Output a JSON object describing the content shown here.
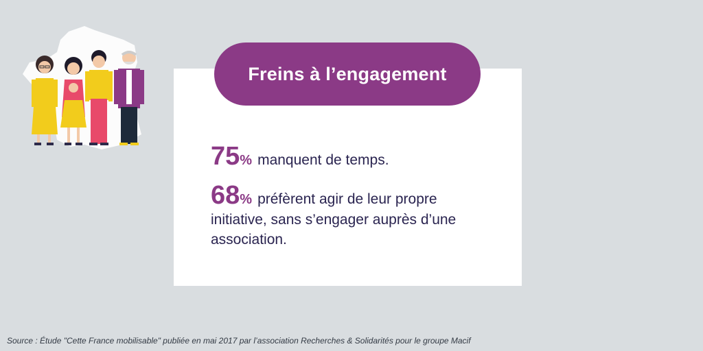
{
  "title": "Freins à l’engagement",
  "stats": [
    {
      "number": "75",
      "unit": "%",
      "text": "manquent de temps."
    },
    {
      "number": "68",
      "unit": "%",
      "text": "préfèrent agir de leur propre initiative, sans s’engager auprès d’une association."
    }
  ],
  "source": "Source : Étude \"Cette France mobilisable\" publiée en mai 2017 par l’association Recherches & Solidarités pour le groupe Macif",
  "colors": {
    "background": "#d9dde0",
    "accent": "#8b3a86",
    "text": "#2a2450",
    "card": "#ffffff"
  },
  "icons": [
    "family-illustration",
    "france-map-icon"
  ]
}
